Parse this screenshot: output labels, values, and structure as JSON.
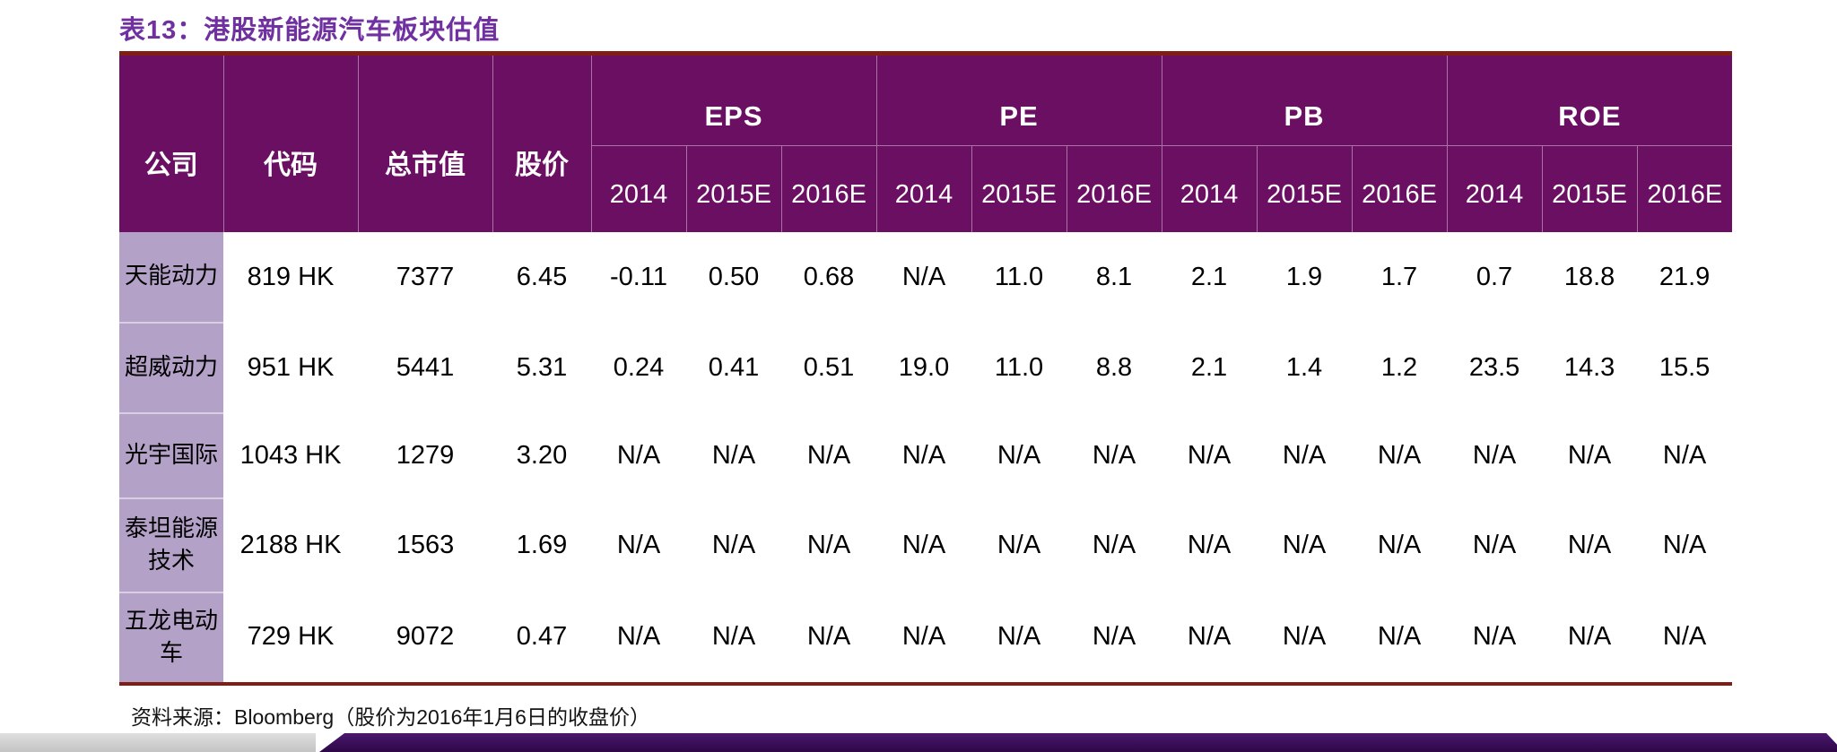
{
  "title": "表13：港股新能源汽车板块估值",
  "colors": {
    "title_purple": "#7030A0",
    "header_bg": "#6B0F63",
    "company_cell_bg": "#B4A1C8",
    "rule_dark_red": "#801D15",
    "footer_bar_purple": "#3A0E58",
    "footer_bar_gray": "#C9C9C9"
  },
  "table": {
    "base_headers": [
      "公司",
      "代码",
      "总市值",
      "股价"
    ],
    "metric_groups": [
      "EPS",
      "PE",
      "PB",
      "ROE"
    ],
    "year_headers": [
      "2014",
      "2015E",
      "2016E"
    ],
    "rows": [
      {
        "company": "天能动力",
        "code": "819 HK",
        "market_cap": "7377",
        "price": "6.45",
        "EPS": [
          "-0.11",
          "0.50",
          "0.68"
        ],
        "PE": [
          "N/A",
          "11.0",
          "8.1"
        ],
        "PB": [
          "2.1",
          "1.9",
          "1.7"
        ],
        "ROE": [
          "0.7",
          "18.8",
          "21.9"
        ]
      },
      {
        "company": "超威动力",
        "code": "951 HK",
        "market_cap": "5441",
        "price": "5.31",
        "EPS": [
          "0.24",
          "0.41",
          "0.51"
        ],
        "PE": [
          "19.0",
          "11.0",
          "8.8"
        ],
        "PB": [
          "2.1",
          "1.4",
          "1.2"
        ],
        "ROE": [
          "23.5",
          "14.3",
          "15.5"
        ]
      },
      {
        "company": "光宇国际",
        "code": "1043 HK",
        "market_cap": "1279",
        "price": "3.20",
        "EPS": [
          "N/A",
          "N/A",
          "N/A"
        ],
        "PE": [
          "N/A",
          "N/A",
          "N/A"
        ],
        "PB": [
          "N/A",
          "N/A",
          "N/A"
        ],
        "ROE": [
          "N/A",
          "N/A",
          "N/A"
        ]
      },
      {
        "company": "泰坦能源技术",
        "code": "2188 HK",
        "market_cap": "1563",
        "price": "1.69",
        "EPS": [
          "N/A",
          "N/A",
          "N/A"
        ],
        "PE": [
          "N/A",
          "N/A",
          "N/A"
        ],
        "PB": [
          "N/A",
          "N/A",
          "N/A"
        ],
        "ROE": [
          "N/A",
          "N/A",
          "N/A"
        ]
      },
      {
        "company": "五龙电动车",
        "code": "729 HK",
        "market_cap": "9072",
        "price": "0.47",
        "EPS": [
          "N/A",
          "N/A",
          "N/A"
        ],
        "PE": [
          "N/A",
          "N/A",
          "N/A"
        ],
        "PB": [
          "N/A",
          "N/A",
          "N/A"
        ],
        "ROE": [
          "N/A",
          "N/A",
          "N/A"
        ]
      }
    ]
  },
  "footer": {
    "source_note": "资料来源：Bloomberg（股价为2016年1月6日的收盘价）"
  }
}
